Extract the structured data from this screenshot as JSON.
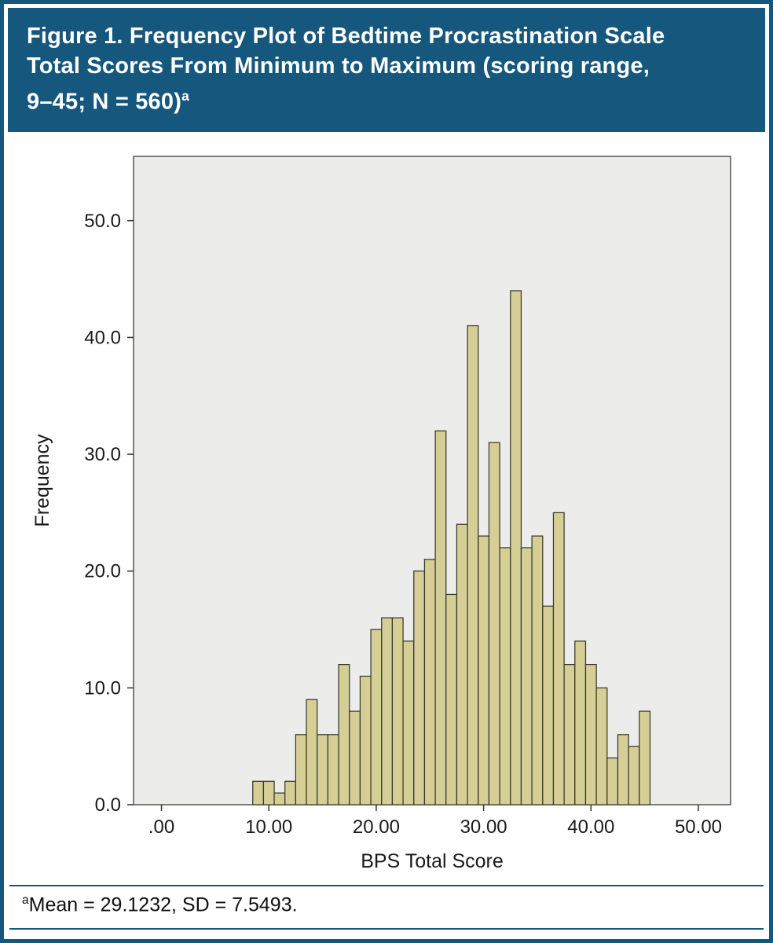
{
  "header": {
    "lines": [
      "Figure 1. Frequency Plot of Bedtime Procrastination Scale",
      "Total Scores From Minimum to Maximum (scoring range,",
      "9–45; N = 560)"
    ],
    "superscript": "a"
  },
  "chart_data": {
    "type": "bar",
    "subtype": "histogram",
    "title": "Frequency Plot of Bedtime Procrastination Scale Total Scores",
    "xlabel": "BPS Total Score",
    "ylabel": "Frequency",
    "x": [
      9,
      10,
      11,
      12,
      13,
      14,
      15,
      16,
      17,
      18,
      19,
      20,
      21,
      22,
      23,
      24,
      25,
      26,
      27,
      28,
      29,
      30,
      31,
      32,
      33,
      34,
      35,
      36,
      37,
      38,
      39,
      40,
      41,
      42,
      43,
      44,
      45
    ],
    "values": [
      2,
      2,
      1,
      2,
      6,
      9,
      6,
      6,
      12,
      8,
      11,
      15,
      16,
      16,
      14,
      20,
      21,
      32,
      18,
      24,
      41,
      23,
      31,
      22,
      44,
      22,
      23,
      17,
      25,
      12,
      14,
      12,
      10,
      4,
      6,
      5,
      8
    ],
    "n_total": 560,
    "bar_width": 1,
    "xlim": [
      -2.6,
      53.0
    ],
    "ylim": [
      0,
      55.5
    ],
    "x_ticks": [
      0,
      10,
      20,
      30,
      40,
      50
    ],
    "x_tick_labels": [
      ".00",
      "10.00",
      "20.00",
      "30.00",
      "40.00",
      "50.00"
    ],
    "y_ticks": [
      0,
      10,
      20,
      30,
      40,
      50
    ],
    "y_tick_labels": [
      "0.0",
      "10.0",
      "20.0",
      "30.0",
      "40.0",
      "50.0"
    ],
    "grid": false,
    "legend": null,
    "bar_fill": "#d5cf95",
    "bar_stroke": "#39382f",
    "plot_bg": "#ececeb",
    "plot_border": "#4a4a4a"
  },
  "footnote": {
    "superscript": "a",
    "text": "Mean = 29.1232, SD = 7.5493."
  },
  "colors": {
    "accent_blue": "#16577d",
    "background": "#ffffff"
  }
}
